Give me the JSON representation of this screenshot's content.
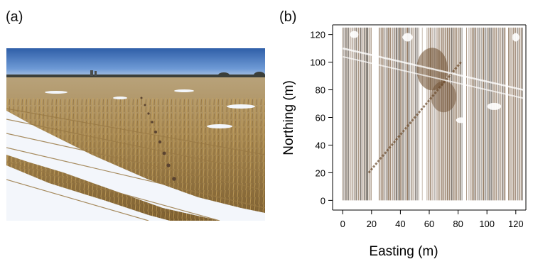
{
  "figure": {
    "panel_a_label": "(a)",
    "panel_b_label": "(b)"
  },
  "photo": {
    "description_icon": "field-photo"
  },
  "chart_data": {
    "type": "heatmap",
    "title": "",
    "xlabel": "Easting (m)",
    "ylabel": "Northing (m)",
    "xlim": [
      -7,
      127
    ],
    "ylim": [
      -7,
      127
    ],
    "x_ticks": [
      0,
      20,
      40,
      60,
      80,
      100,
      120
    ],
    "y_ticks": [
      0,
      20,
      40,
      60,
      80,
      100,
      120
    ],
    "x_tick_labels": [
      "0",
      "20",
      "40",
      "60",
      "80",
      "100",
      "120"
    ],
    "y_tick_labels": [
      "0",
      "20",
      "40",
      "60",
      "80",
      "100",
      "120"
    ],
    "data_extent": {
      "x": [
        0,
        125
      ],
      "y": [
        0,
        125
      ]
    },
    "grid": false,
    "colors": {
      "snow": "#ffffff",
      "stubble": "#6b4a2a",
      "dark": "#2a1f14"
    }
  }
}
